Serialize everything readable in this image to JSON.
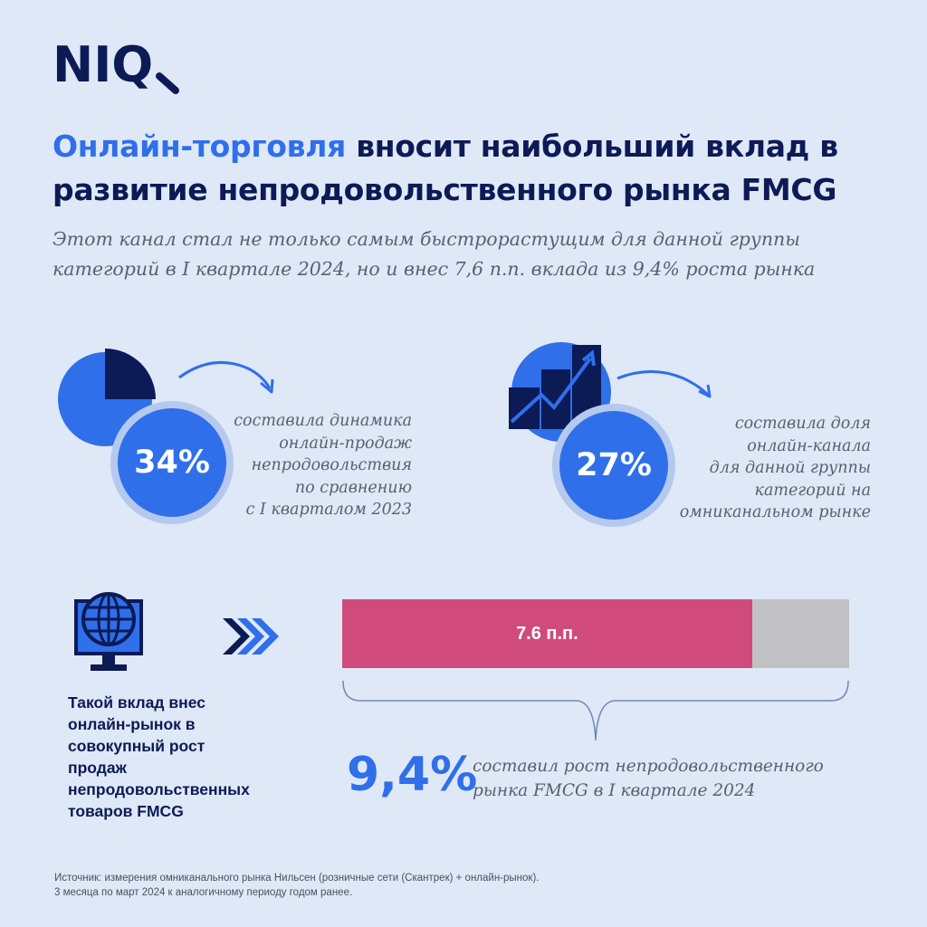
{
  "logo": {
    "text": "NIQ"
  },
  "title": {
    "highlight": "Онлайн-торговля",
    "rest": " вносит наибольший вклад в развитие непродовольственного рынка FMCG"
  },
  "subtitle": "Этот канал стал не только самым быстрорастущим для данной группы категорий в I квартале 2024, но и внес 7,6 п.п. вклада из 9,4% роста рынка",
  "stats": [
    {
      "icon": "pie-chart-icon",
      "value": "34%",
      "lines": [
        "составила динамика",
        "онлайн-продаж",
        "непродовольствия",
        "по сравнению",
        "с I кварталом 2023"
      ]
    },
    {
      "icon": "growth-bar-chart-icon",
      "value": "27%",
      "lines": [
        "составила доля",
        "онлайн-канала",
        "для данной группы",
        "категорий на",
        "омниканальном рынке"
      ]
    }
  ],
  "contribution": {
    "icon": "globe-monitor-icon",
    "arrows_icon": "fast-forward-icon",
    "text_lines": [
      "Такой вклад внес",
      "онлайн-рынок в",
      "совокупный рост",
      "продаж",
      "непродовольственных",
      "товаров FMCG"
    ]
  },
  "bar": {
    "label": "7.6 п.п.",
    "online_pp": 7.6,
    "total_pct": 9.4,
    "colors": {
      "online": "#d04b7c",
      "rest": "#c1c1c4"
    }
  },
  "growth": {
    "value": "9,4%",
    "lines": [
      "составил рост непродовольственного",
      "рынка FMCG в I квартале 2024"
    ]
  },
  "source": {
    "lines": [
      "Источник: измерения омниканального рынка Нильсен (розничные сети (Скантрек) + онлайн-рынок).",
      "3 месяца по март 2024 к аналогичному периоду годом ранее."
    ]
  },
  "colors": {
    "background": "#dfe8f7",
    "navy": "#0c1a56",
    "accent_blue": "#2f6fea",
    "ring": "#b5c9ee",
    "pink": "#d04b7c",
    "grey": "#c1c1c4"
  }
}
